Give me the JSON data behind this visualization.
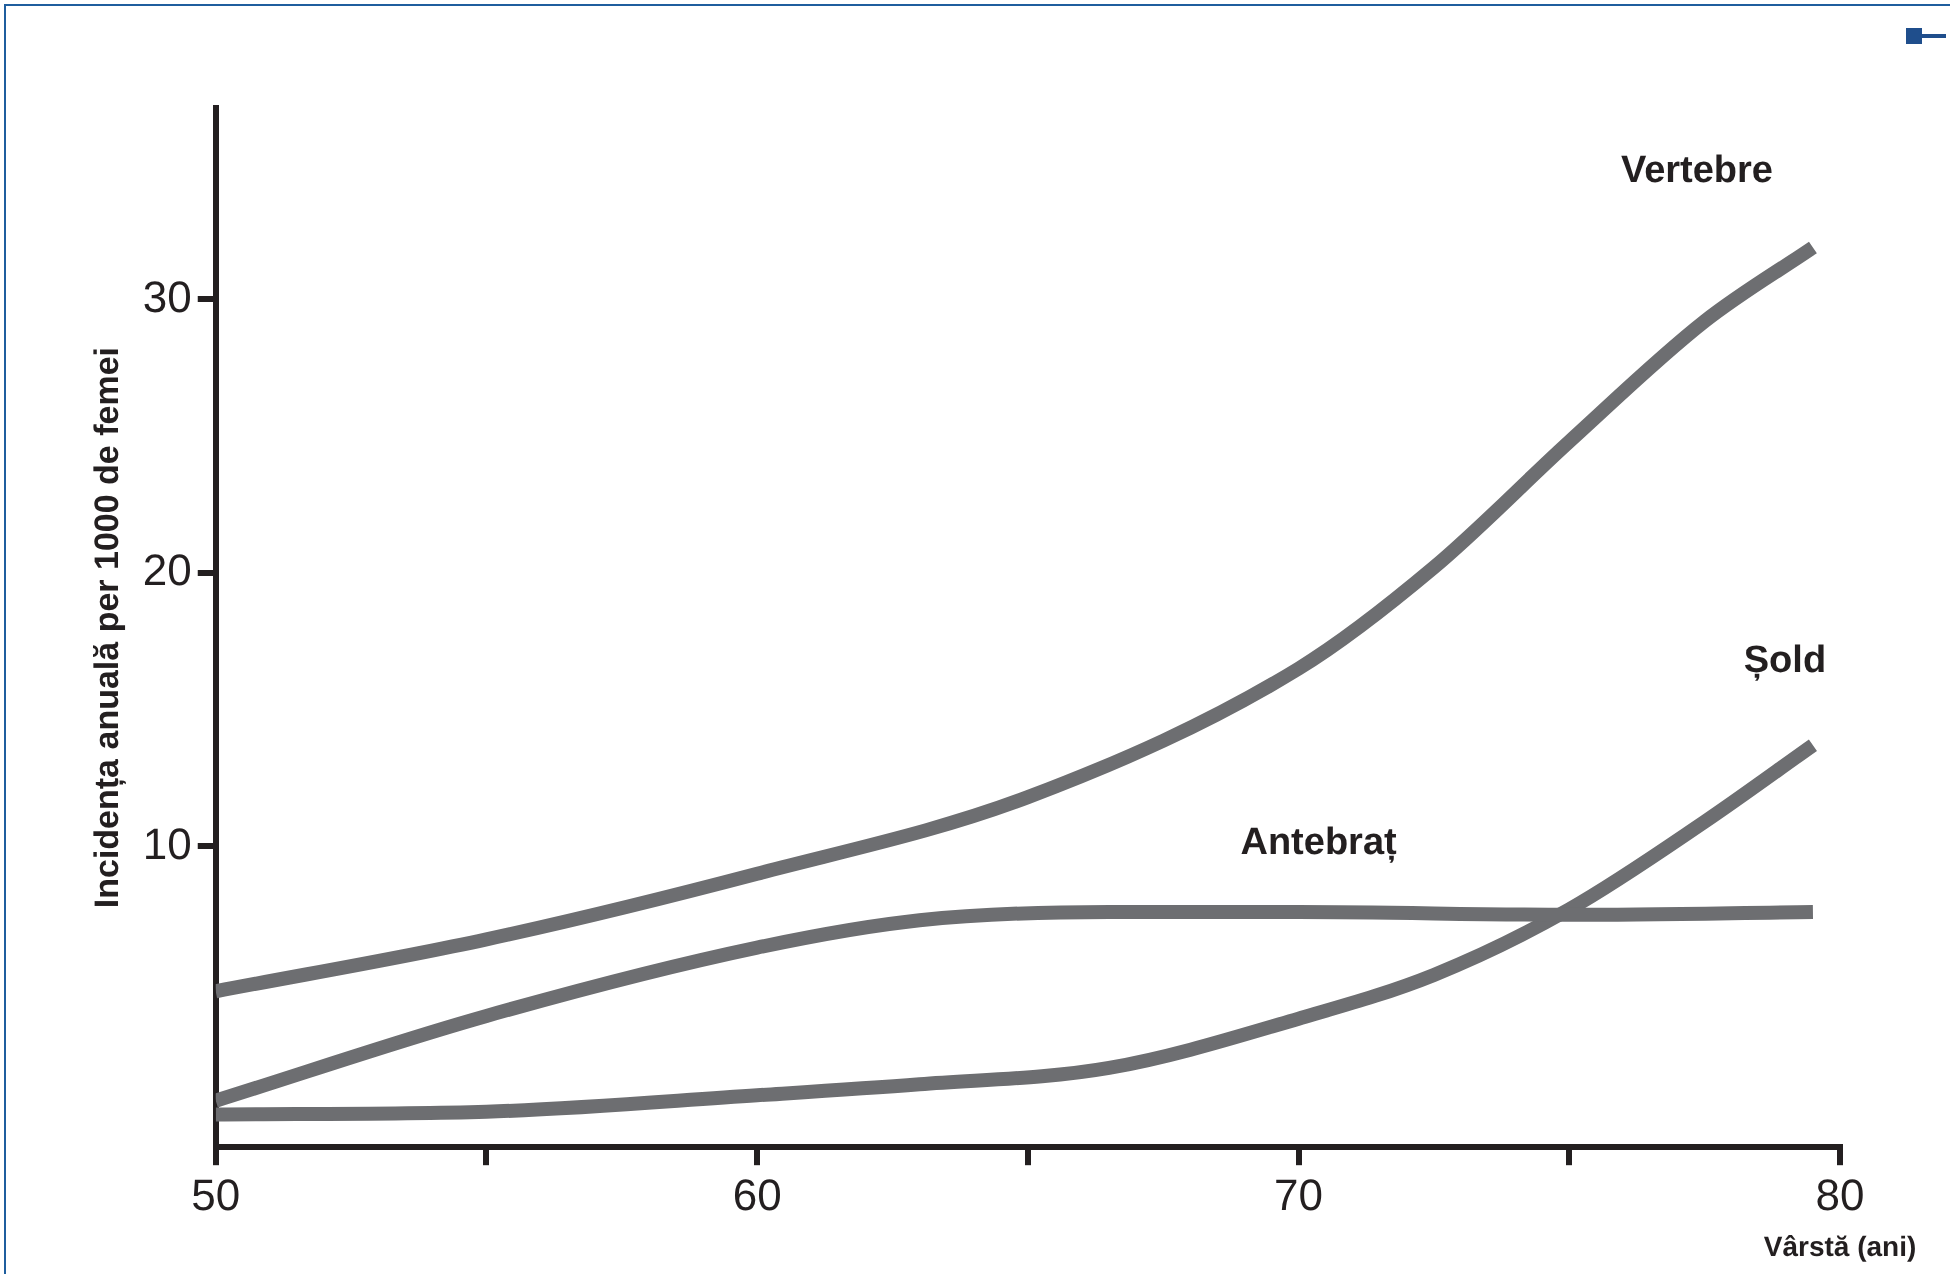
{
  "chart_data": {
    "type": "line",
    "ylabel": "Incidența anuală per 1000 de femei",
    "xlabel": "Vârstă (ani)",
    "xlim": [
      50,
      80
    ],
    "xticks": [
      50,
      {
        "value": 55,
        "label": null
      },
      60,
      {
        "value": 65,
        "label": null
      },
      70,
      {
        "value": 75,
        "label": null
      },
      80
    ],
    "ylim": [
      -1,
      37
    ],
    "yticks": [
      10,
      20,
      30
    ],
    "grid": false,
    "legend": false,
    "marker": "none",
    "line_style": "solid",
    "series": [
      {
        "name": "Vertebre",
        "color": "#6d6e71",
        "x": [
          50,
          55,
          60,
          65,
          70,
          72.5,
          75,
          77.5,
          79.5
        ],
        "values": [
          4.7,
          6.6,
          9.0,
          11.8,
          16.5,
          20.2,
          24.8,
          29.2,
          31.9
        ]
      },
      {
        "name": "Antebraț",
        "color": "#6d6e71",
        "x": [
          50,
          55,
          60,
          63,
          66.5,
          70,
          75,
          79.5
        ],
        "values": [
          0.7,
          3.8,
          6.3,
          7.3,
          7.6,
          7.6,
          7.5,
          7.6
        ]
      },
      {
        "name": "Șold",
        "color": "#6d6e71",
        "x": [
          50,
          55,
          60,
          63,
          66.5,
          70,
          72.5,
          75,
          77.5,
          79.5
        ],
        "values": [
          0.2,
          0.3,
          0.9,
          1.3,
          1.9,
          3.7,
          5.3,
          7.7,
          10.9,
          13.7
        ]
      }
    ]
  }
}
